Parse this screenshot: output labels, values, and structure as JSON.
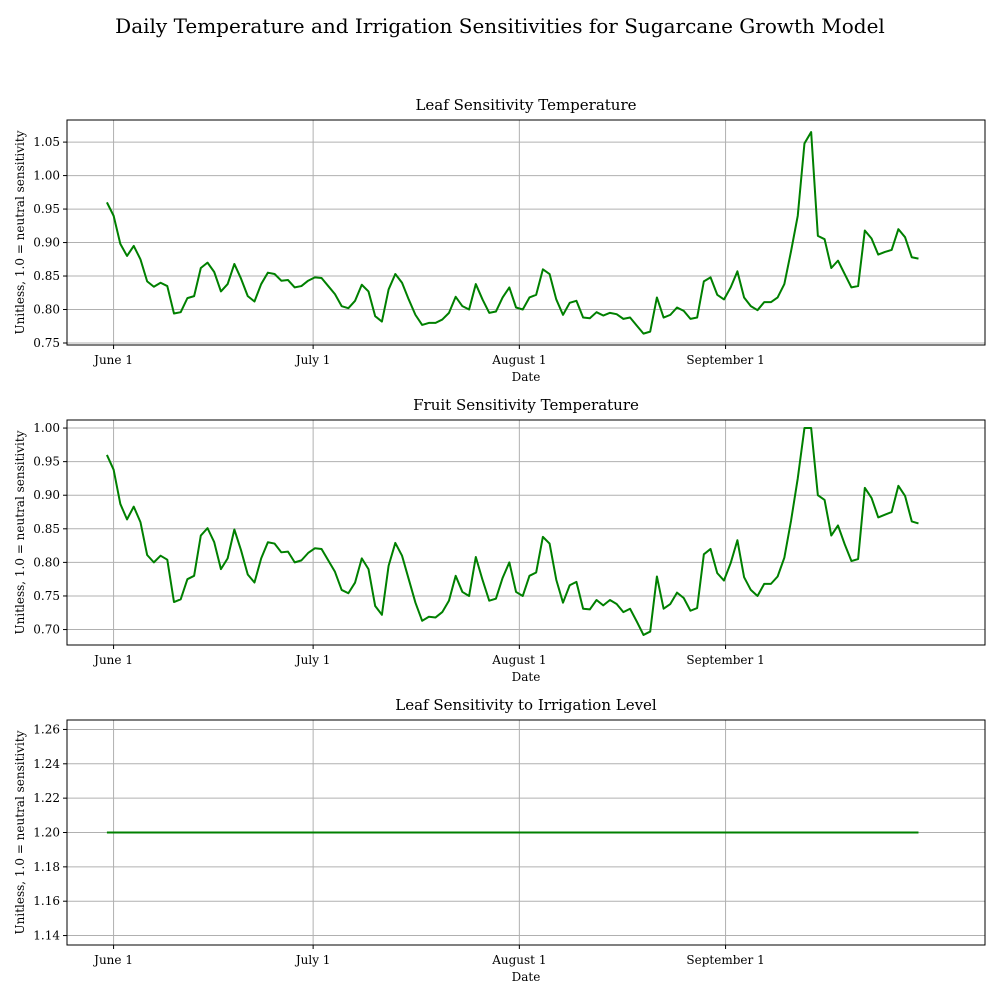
{
  "figure": {
    "title": "Daily Temperature and Irrigation Sensitivities for Sugarcane Growth Model"
  },
  "chart_data": [
    {
      "type": "line",
      "title": "Leaf Sensitivity Temperature",
      "xlabel": "Date",
      "ylabel": "Unitless, 1.0 = neutral sensitivity",
      "x_tick_dates": [
        "2023-06-01",
        "2023-07-01",
        "2023-08-01",
        "2023-09-01"
      ],
      "x_tick_labels": [
        "June 1",
        "July 1",
        "August 1",
        "September 1"
      ],
      "x_start": "2023-05-31",
      "x_end": "2023-09-30",
      "xlim": [
        "2023-05-25",
        "2023-10-10"
      ],
      "ylim": [
        0.747,
        1.083
      ],
      "yticks": [
        0.75,
        0.8,
        0.85,
        0.9,
        0.95,
        1.0,
        1.05
      ],
      "ytick_labels": [
        "0.75",
        "0.80",
        "0.85",
        "0.90",
        "0.95",
        "1.00",
        "1.05"
      ],
      "grid": true,
      "series": [
        {
          "color": "#008000",
          "values": [
            0.96,
            0.94,
            0.898,
            0.88,
            0.895,
            0.875,
            0.842,
            0.834,
            0.84,
            0.835,
            0.794,
            0.796,
            0.817,
            0.82,
            0.862,
            0.87,
            0.856,
            0.827,
            0.838,
            0.868,
            0.846,
            0.82,
            0.812,
            0.838,
            0.855,
            0.853,
            0.843,
            0.844,
            0.833,
            0.835,
            0.843,
            0.848,
            0.847,
            0.835,
            0.823,
            0.805,
            0.802,
            0.813,
            0.837,
            0.827,
            0.79,
            0.782,
            0.83,
            0.853,
            0.84,
            0.815,
            0.792,
            0.777,
            0.78,
            0.78,
            0.785,
            0.795,
            0.819,
            0.805,
            0.8,
            0.838,
            0.815,
            0.795,
            0.797,
            0.818,
            0.833,
            0.803,
            0.8,
            0.818,
            0.822,
            0.86,
            0.853,
            0.815,
            0.792,
            0.81,
            0.813,
            0.788,
            0.787,
            0.796,
            0.791,
            0.795,
            0.793,
            0.786,
            0.788,
            0.776,
            0.764,
            0.767,
            0.818,
            0.788,
            0.792,
            0.803,
            0.798,
            0.786,
            0.788,
            0.842,
            0.848,
            0.822,
            0.815,
            0.833,
            0.857,
            0.818,
            0.805,
            0.799,
            0.811,
            0.811,
            0.818,
            0.838,
            0.887,
            0.94,
            1.048,
            1.065,
            0.91,
            0.905,
            0.862,
            0.873,
            0.853,
            0.833,
            0.835,
            0.918,
            0.906,
            0.882,
            0.886,
            0.889,
            0.92,
            0.908,
            0.878,
            0.876
          ]
        }
      ]
    },
    {
      "type": "line",
      "title": "Fruit Sensitivity Temperature",
      "xlabel": "Date",
      "ylabel": "Unitless, 1.0 = neutral sensitivity",
      "x_tick_dates": [
        "2023-06-01",
        "2023-07-01",
        "2023-08-01",
        "2023-09-01"
      ],
      "x_tick_labels": [
        "June 1",
        "July 1",
        "August 1",
        "September 1"
      ],
      "x_start": "2023-05-31",
      "x_end": "2023-09-30",
      "xlim": [
        "2023-05-25",
        "2023-10-10"
      ],
      "ylim": [
        0.677,
        1.012
      ],
      "yticks": [
        0.7,
        0.75,
        0.8,
        0.85,
        0.9,
        0.95,
        1.0
      ],
      "ytick_labels": [
        "0.70",
        "0.75",
        "0.80",
        "0.85",
        "0.90",
        "0.95",
        "1.00"
      ],
      "grid": true,
      "series": [
        {
          "color": "#008000",
          "values": [
            0.96,
            0.938,
            0.887,
            0.864,
            0.883,
            0.86,
            0.811,
            0.8,
            0.81,
            0.804,
            0.741,
            0.745,
            0.775,
            0.78,
            0.84,
            0.851,
            0.83,
            0.79,
            0.806,
            0.849,
            0.818,
            0.782,
            0.77,
            0.806,
            0.83,
            0.828,
            0.815,
            0.816,
            0.8,
            0.803,
            0.814,
            0.821,
            0.82,
            0.803,
            0.786,
            0.759,
            0.754,
            0.77,
            0.806,
            0.79,
            0.735,
            0.722,
            0.795,
            0.829,
            0.81,
            0.775,
            0.74,
            0.713,
            0.719,
            0.718,
            0.726,
            0.743,
            0.78,
            0.756,
            0.75,
            0.808,
            0.774,
            0.743,
            0.746,
            0.777,
            0.8,
            0.756,
            0.75,
            0.78,
            0.785,
            0.838,
            0.828,
            0.774,
            0.74,
            0.766,
            0.771,
            0.731,
            0.73,
            0.744,
            0.736,
            0.744,
            0.738,
            0.726,
            0.731,
            0.712,
            0.692,
            0.697,
            0.779,
            0.731,
            0.738,
            0.755,
            0.747,
            0.728,
            0.732,
            0.812,
            0.82,
            0.784,
            0.773,
            0.799,
            0.833,
            0.778,
            0.759,
            0.75,
            0.768,
            0.768,
            0.779,
            0.807,
            0.862,
            0.925,
            1.0,
            1.0,
            0.9,
            0.893,
            0.84,
            0.855,
            0.827,
            0.802,
            0.805,
            0.911,
            0.896,
            0.867,
            0.871,
            0.875,
            0.914,
            0.899,
            0.861,
            0.858
          ]
        }
      ]
    },
    {
      "type": "line",
      "title": "Leaf Sensitivity to Irrigation Level",
      "xlabel": "Date",
      "ylabel": "Unitless, 1.0 = neutral sensitivity",
      "x_tick_dates": [
        "2023-06-01",
        "2023-07-01",
        "2023-08-01",
        "2023-09-01"
      ],
      "x_tick_labels": [
        "June 1",
        "July 1",
        "August 1",
        "September 1"
      ],
      "x_start": "2023-05-31",
      "x_end": "2023-09-30",
      "xlim": [
        "2023-05-25",
        "2023-10-10"
      ],
      "ylim": [
        1.1345,
        1.2655
      ],
      "yticks": [
        1.14,
        1.16,
        1.18,
        1.2,
        1.22,
        1.24,
        1.26
      ],
      "ytick_labels": [
        "1.14",
        "1.16",
        "1.18",
        "1.20",
        "1.22",
        "1.24",
        "1.26"
      ],
      "grid": true,
      "series": [
        {
          "color": "#008000",
          "constant_value": 1.2
        }
      ]
    }
  ]
}
